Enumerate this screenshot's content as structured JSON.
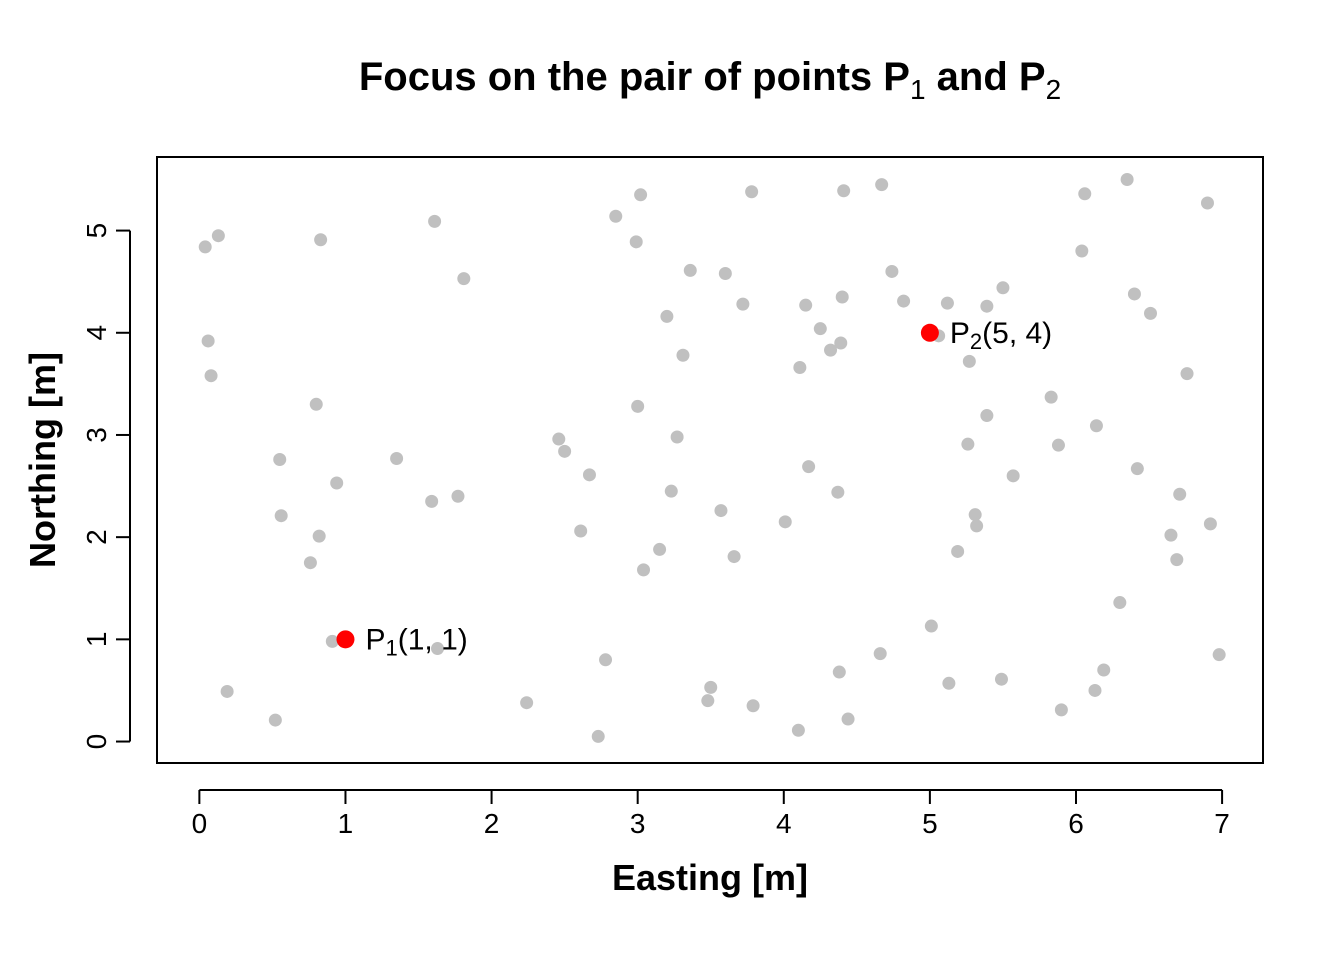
{
  "chart_data": {
    "type": "scatter",
    "title": {
      "main": "Focus on the pair of points P",
      "sub1": "1",
      "mid": " and P",
      "sub2": "2"
    },
    "xlabel": "Easting [m]",
    "ylabel": "Northing [m]",
    "xlim": [
      -0.29,
      7.28
    ],
    "ylim": [
      -0.21,
      5.72
    ],
    "x_ticks": [
      "0",
      "1",
      "2",
      "3",
      "4",
      "5",
      "6",
      "7"
    ],
    "y_ticks": [
      "0",
      "1",
      "2",
      "3",
      "4",
      "5"
    ],
    "grid": false,
    "background_color": "#c0c0c0",
    "highlight_color": "#ff0000",
    "background_points": [
      [
        0.04,
        4.84
      ],
      [
        0.13,
        4.95
      ],
      [
        0.06,
        3.92
      ],
      [
        0.08,
        3.58
      ],
      [
        0.19,
        0.49
      ],
      [
        0.52,
        0.21
      ],
      [
        0.55,
        2.76
      ],
      [
        0.56,
        2.21
      ],
      [
        0.76,
        1.75
      ],
      [
        0.8,
        3.3
      ],
      [
        0.82,
        2.01
      ],
      [
        0.83,
        4.91
      ],
      [
        0.94,
        2.53
      ],
      [
        0.91,
        0.98
      ],
      [
        1.35,
        2.77
      ],
      [
        1.59,
        2.35
      ],
      [
        1.61,
        5.09
      ],
      [
        1.63,
        0.91
      ],
      [
        1.77,
        2.4
      ],
      [
        1.81,
        4.53
      ],
      [
        2.24,
        0.38
      ],
      [
        2.46,
        2.96
      ],
      [
        2.5,
        2.84
      ],
      [
        2.61,
        2.06
      ],
      [
        2.67,
        2.61
      ],
      [
        2.73,
        0.05
      ],
      [
        2.78,
        0.8
      ],
      [
        2.85,
        5.14
      ],
      [
        2.99,
        4.89
      ],
      [
        3.0,
        3.28
      ],
      [
        3.02,
        5.35
      ],
      [
        3.04,
        1.68
      ],
      [
        3.15,
        1.88
      ],
      [
        3.2,
        4.16
      ],
      [
        3.23,
        2.45
      ],
      [
        3.27,
        2.98
      ],
      [
        3.31,
        3.78
      ],
      [
        3.36,
        4.61
      ],
      [
        3.48,
        0.4
      ],
      [
        3.5,
        0.53
      ],
      [
        3.57,
        2.26
      ],
      [
        3.6,
        4.58
      ],
      [
        3.66,
        1.81
      ],
      [
        3.72,
        4.28
      ],
      [
        3.78,
        5.38
      ],
      [
        3.79,
        0.35
      ],
      [
        4.01,
        2.15
      ],
      [
        4.1,
        0.11
      ],
      [
        4.11,
        3.66
      ],
      [
        4.15,
        4.27
      ],
      [
        4.17,
        2.69
      ],
      [
        4.25,
        4.04
      ],
      [
        4.32,
        3.83
      ],
      [
        4.37,
        2.44
      ],
      [
        4.38,
        0.68
      ],
      [
        4.39,
        3.9
      ],
      [
        4.4,
        4.35
      ],
      [
        4.41,
        5.39
      ],
      [
        4.44,
        0.22
      ],
      [
        4.66,
        0.86
      ],
      [
        4.67,
        5.45
      ],
      [
        4.74,
        4.6
      ],
      [
        4.82,
        4.31
      ],
      [
        5.06,
        3.97
      ],
      [
        5.01,
        1.13
      ],
      [
        5.12,
        4.29
      ],
      [
        5.13,
        0.57
      ],
      [
        5.19,
        1.86
      ],
      [
        5.26,
        2.91
      ],
      [
        5.27,
        3.72
      ],
      [
        5.31,
        2.22
      ],
      [
        5.32,
        2.11
      ],
      [
        5.39,
        3.19
      ],
      [
        5.39,
        4.26
      ],
      [
        5.49,
        0.61
      ],
      [
        5.5,
        4.44
      ],
      [
        5.57,
        2.6
      ],
      [
        5.83,
        3.37
      ],
      [
        5.88,
        2.9
      ],
      [
        5.9,
        0.31
      ],
      [
        6.04,
        4.8
      ],
      [
        6.06,
        5.36
      ],
      [
        6.13,
        0.5
      ],
      [
        6.14,
        3.09
      ],
      [
        6.19,
        0.7
      ],
      [
        6.3,
        1.36
      ],
      [
        6.35,
        5.5
      ],
      [
        6.4,
        4.38
      ],
      [
        6.42,
        2.67
      ],
      [
        6.51,
        4.19
      ],
      [
        6.65,
        2.02
      ],
      [
        6.69,
        1.78
      ],
      [
        6.71,
        2.42
      ],
      [
        6.76,
        3.6
      ],
      [
        6.9,
        5.27
      ],
      [
        6.92,
        2.13
      ],
      [
        6.98,
        0.85
      ]
    ],
    "highlight_points": [
      {
        "x": 1,
        "y": 1,
        "name": "P",
        "sub": "1",
        "coords": "(1, 1)"
      },
      {
        "x": 5,
        "y": 4,
        "name": "P",
        "sub": "2",
        "coords": "(5, 4)"
      }
    ]
  }
}
